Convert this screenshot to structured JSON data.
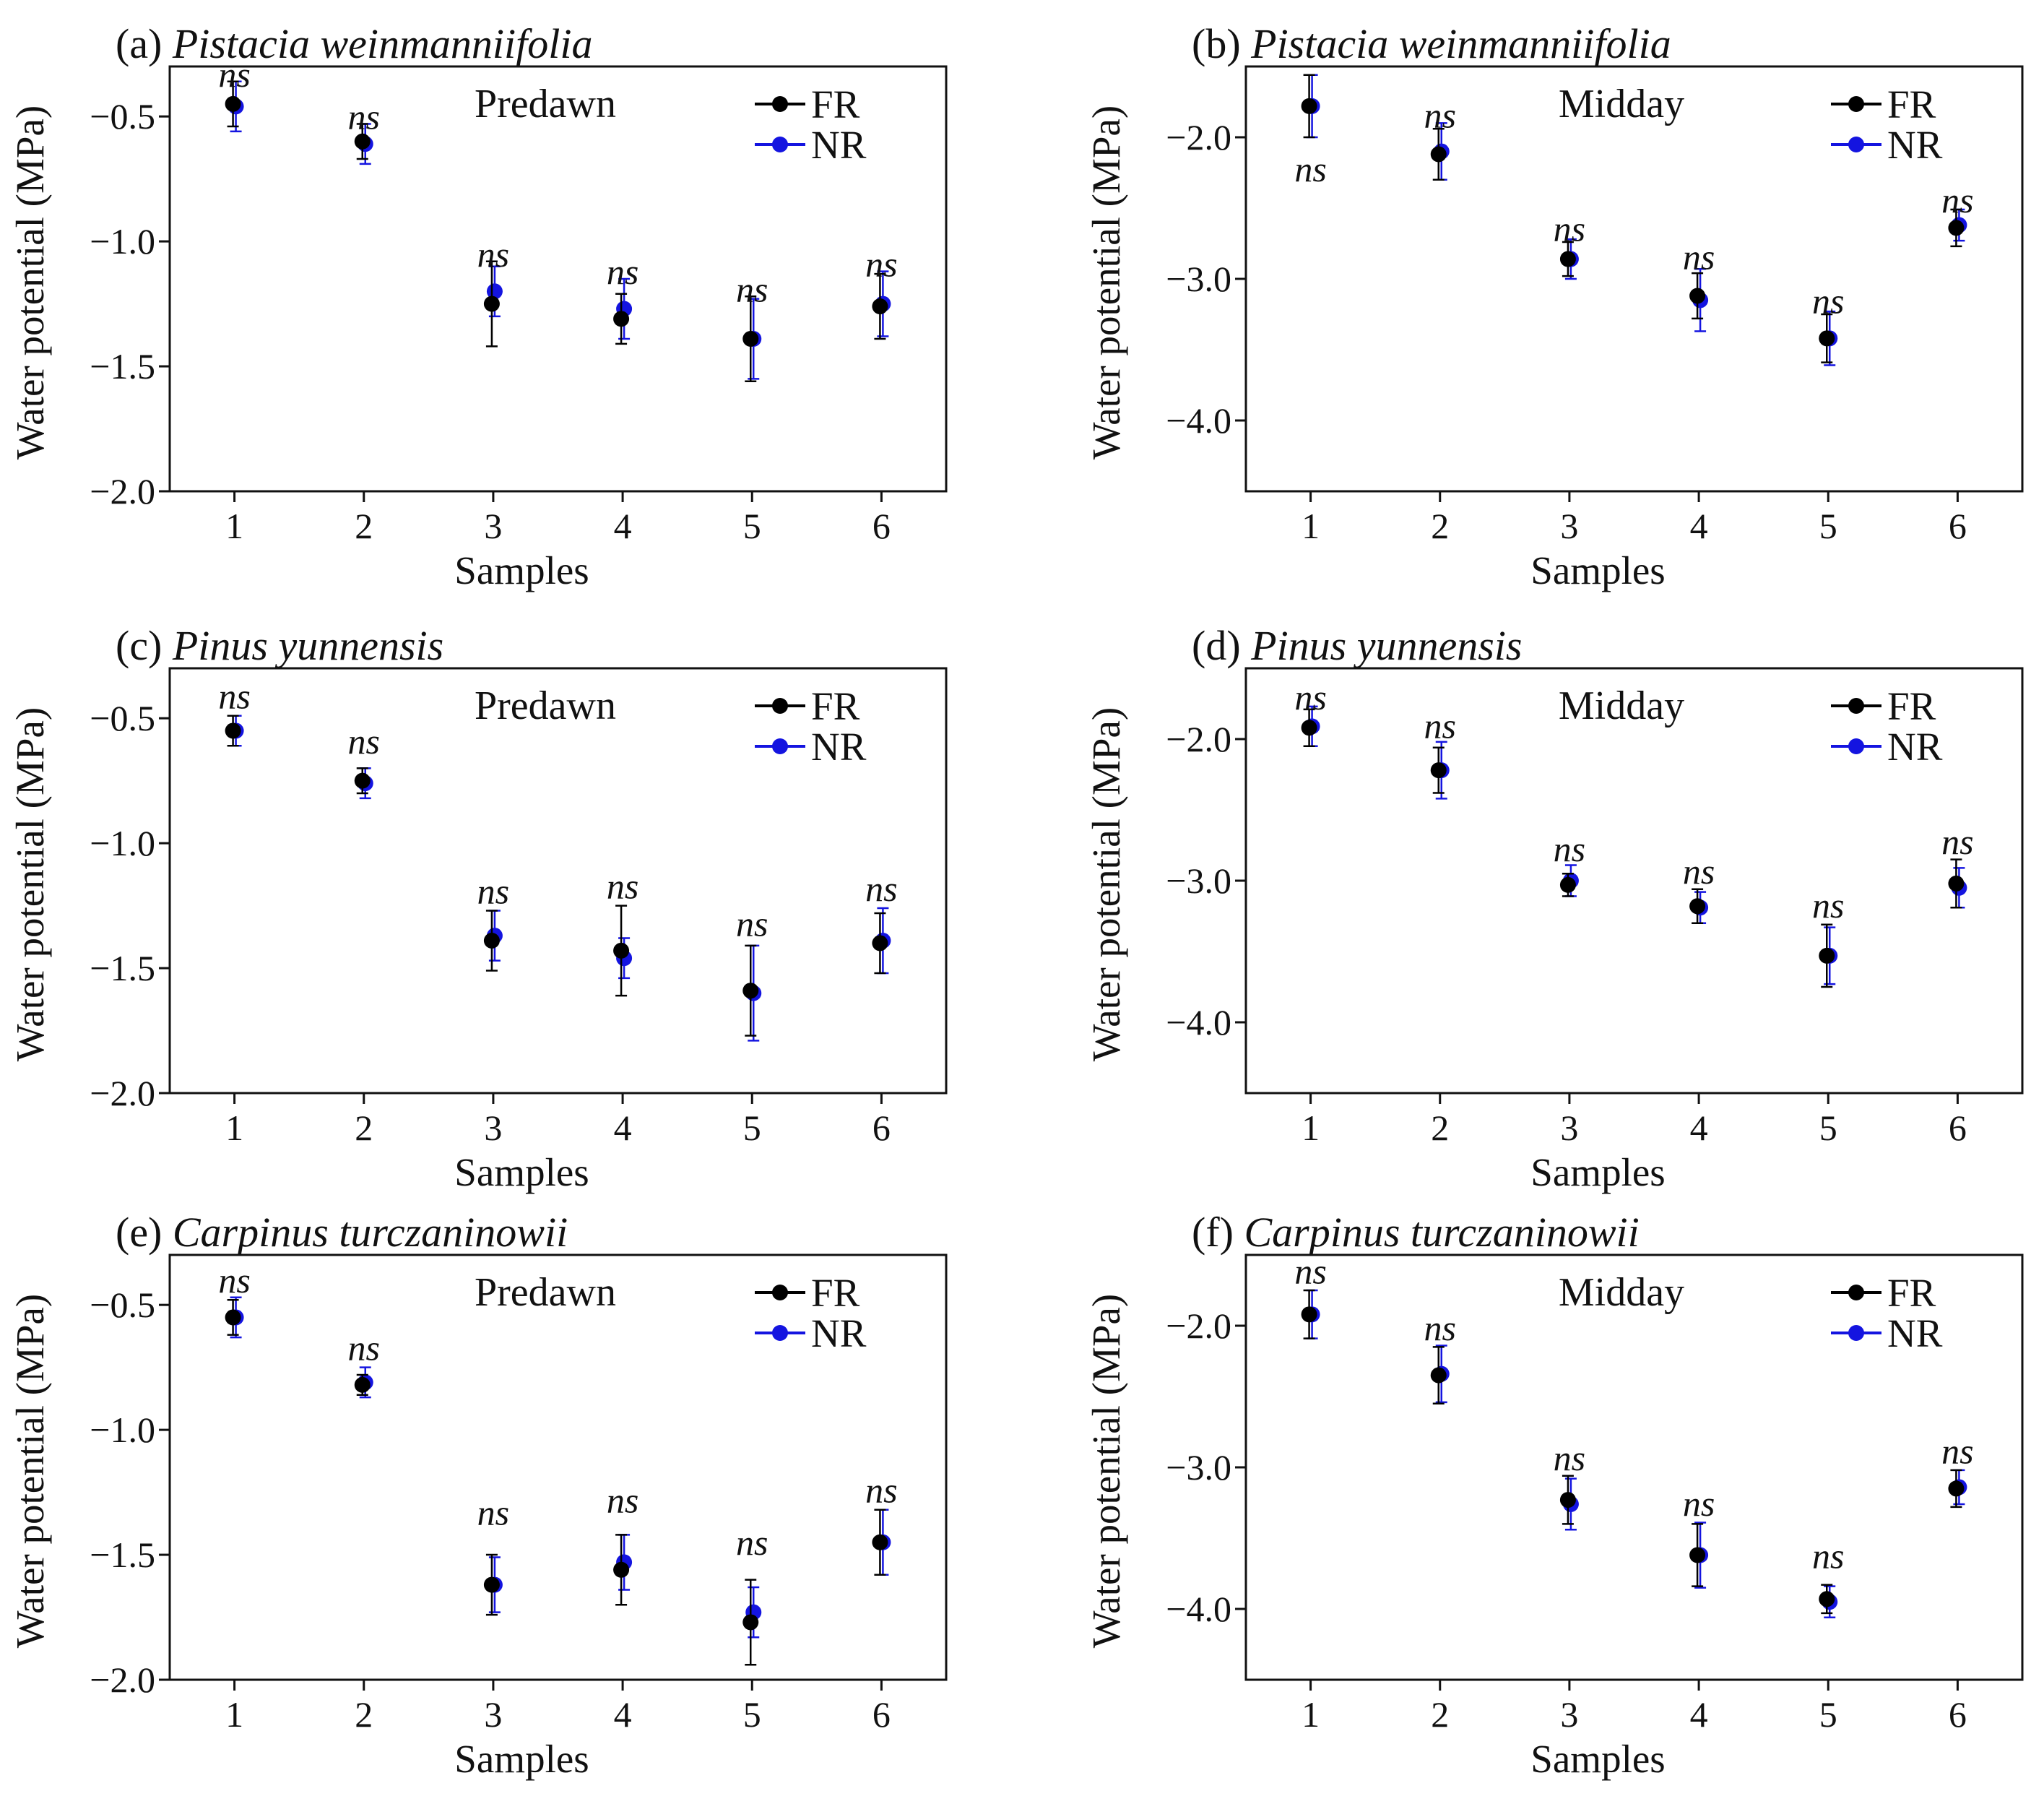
{
  "colors": {
    "FR": "#000000",
    "NR": "#1414e0",
    "axis": "#111111"
  },
  "chart_data": [
    {
      "type": "scatter",
      "label": "(a)",
      "title": "Pistacia weinmanniifolia",
      "mode_label": "Predawn",
      "xlabel": "Samples",
      "ylabel": "Water potential (MPa)",
      "x": [
        1,
        2,
        3,
        4,
        5,
        6
      ],
      "xlim": [
        0.5,
        6.5
      ],
      "ylim": [
        -2.0,
        -0.3
      ],
      "yticks": [
        -0.5,
        -1.0,
        -1.5,
        -2.0
      ],
      "ytick_labels": [
        "−0.5",
        "−1.0",
        "−1.5",
        "−2.0"
      ],
      "grid": false,
      "legend": "top-right",
      "series": [
        {
          "name": "FR",
          "color": "#000000",
          "values": [
            -0.45,
            -0.6,
            -1.25,
            -1.31,
            -1.39,
            -1.26
          ],
          "errors": [
            0.09,
            0.07,
            0.17,
            0.1,
            0.17,
            0.13
          ]
        },
        {
          "name": "NR",
          "color": "#1414e0",
          "values": [
            -0.46,
            -0.61,
            -1.2,
            -1.27,
            -1.39,
            -1.25
          ],
          "errors": [
            0.1,
            0.08,
            0.1,
            0.12,
            0.16,
            0.13
          ]
        }
      ],
      "annotations": [
        {
          "x": 1,
          "y": -0.34,
          "text": "ns"
        },
        {
          "x": 2,
          "y": -0.51,
          "text": "ns"
        },
        {
          "x": 3,
          "y": -1.06,
          "text": "ns"
        },
        {
          "x": 4,
          "y": -1.13,
          "text": "ns"
        },
        {
          "x": 5,
          "y": -1.2,
          "text": "ns"
        },
        {
          "x": 6,
          "y": -1.1,
          "text": "ns"
        }
      ]
    },
    {
      "type": "scatter",
      "label": "(b)",
      "title": "Pistacia weinmanniifolia",
      "mode_label": "Midday",
      "xlabel": "Samples",
      "ylabel": "Water potential (MPa)",
      "x": [
        1,
        2,
        3,
        4,
        5,
        6
      ],
      "xlim": [
        0.5,
        6.5
      ],
      "ylim": [
        -4.5,
        -1.5
      ],
      "yticks": [
        -2.0,
        -3.0,
        -4.0
      ],
      "ytick_labels": [
        "−2.0",
        "−3.0",
        "−4.0"
      ],
      "grid": false,
      "legend": "top-right",
      "series": [
        {
          "name": "FR",
          "color": "#000000",
          "values": [
            -1.78,
            -2.12,
            -2.86,
            -3.12,
            -3.42,
            -2.64
          ],
          "errors": [
            0.22,
            0.18,
            0.12,
            0.16,
            0.17,
            0.13
          ]
        },
        {
          "name": "NR",
          "color": "#1414e0",
          "values": [
            -1.78,
            -2.1,
            -2.86,
            -3.15,
            -3.42,
            -2.62
          ],
          "errors": [
            0.22,
            0.2,
            0.14,
            0.22,
            0.19,
            0.11
          ]
        }
      ],
      "annotations": [
        {
          "x": 1,
          "y": -2.24,
          "text": "ns"
        },
        {
          "x": 2,
          "y": -1.86,
          "text": "ns"
        },
        {
          "x": 3,
          "y": -2.66,
          "text": "ns"
        },
        {
          "x": 4,
          "y": -2.86,
          "text": "ns"
        },
        {
          "x": 5,
          "y": -3.17,
          "text": "ns"
        },
        {
          "x": 6,
          "y": -2.46,
          "text": "ns"
        }
      ]
    },
    {
      "type": "scatter",
      "label": "(c)",
      "title": "Pinus yunnensis",
      "mode_label": "Predawn",
      "xlabel": "Samples",
      "ylabel": "Water potential (MPa)",
      "x": [
        1,
        2,
        3,
        4,
        5,
        6
      ],
      "xlim": [
        0.5,
        6.5
      ],
      "ylim": [
        -2.0,
        -0.3
      ],
      "yticks": [
        -0.5,
        -1.0,
        -1.5,
        -2.0
      ],
      "ytick_labels": [
        "−0.5",
        "−1.0",
        "−1.5",
        "−2.0"
      ],
      "grid": false,
      "legend": "top-right",
      "series": [
        {
          "name": "FR",
          "color": "#000000",
          "values": [
            -0.55,
            -0.75,
            -1.39,
            -1.43,
            -1.59,
            -1.4
          ],
          "errors": [
            0.06,
            0.05,
            0.12,
            0.18,
            0.18,
            0.12
          ]
        },
        {
          "name": "NR",
          "color": "#1414e0",
          "values": [
            -0.55,
            -0.76,
            -1.37,
            -1.46,
            -1.6,
            -1.39
          ],
          "errors": [
            0.06,
            0.06,
            0.1,
            0.08,
            0.19,
            0.13
          ]
        }
      ],
      "annotations": [
        {
          "x": 1,
          "y": -0.42,
          "text": "ns"
        },
        {
          "x": 2,
          "y": -0.6,
          "text": "ns"
        },
        {
          "x": 3,
          "y": -1.2,
          "text": "ns"
        },
        {
          "x": 4,
          "y": -1.18,
          "text": "ns"
        },
        {
          "x": 5,
          "y": -1.33,
          "text": "ns"
        },
        {
          "x": 6,
          "y": -1.19,
          "text": "ns"
        }
      ]
    },
    {
      "type": "scatter",
      "label": "(d)",
      "title": "Pinus yunnensis",
      "mode_label": "Midday",
      "xlabel": "Samples",
      "ylabel": "Water potential (MPa)",
      "x": [
        1,
        2,
        3,
        4,
        5,
        6
      ],
      "xlim": [
        0.5,
        6.5
      ],
      "ylim": [
        -4.5,
        -1.5
      ],
      "yticks": [
        -2.0,
        -3.0,
        -4.0
      ],
      "ytick_labels": [
        "−2.0",
        "−3.0",
        "−4.0"
      ],
      "grid": false,
      "legend": "top-right",
      "series": [
        {
          "name": "FR",
          "color": "#000000",
          "values": [
            -1.92,
            -2.22,
            -3.03,
            -3.18,
            -3.53,
            -3.02
          ],
          "errors": [
            0.13,
            0.16,
            0.08,
            0.12,
            0.22,
            0.17
          ]
        },
        {
          "name": "NR",
          "color": "#1414e0",
          "values": [
            -1.91,
            -2.22,
            -3.0,
            -3.19,
            -3.53,
            -3.05
          ],
          "errors": [
            0.14,
            0.2,
            0.11,
            0.11,
            0.2,
            0.14
          ]
        }
      ],
      "annotations": [
        {
          "x": 1,
          "y": -1.72,
          "text": "ns"
        },
        {
          "x": 2,
          "y": -1.92,
          "text": "ns"
        },
        {
          "x": 3,
          "y": -2.79,
          "text": "ns"
        },
        {
          "x": 4,
          "y": -2.95,
          "text": "ns"
        },
        {
          "x": 5,
          "y": -3.19,
          "text": "ns"
        },
        {
          "x": 6,
          "y": -2.74,
          "text": "ns"
        }
      ]
    },
    {
      "type": "scatter",
      "label": "(e)",
      "title": "Carpinus turczaninowii",
      "mode_label": "Predawn",
      "xlabel": "Samples",
      "ylabel": "Water potential (MPa)",
      "x": [
        1,
        2,
        3,
        4,
        5,
        6
      ],
      "xlim": [
        0.5,
        6.5
      ],
      "ylim": [
        -2.0,
        -0.3
      ],
      "yticks": [
        -0.5,
        -1.0,
        -1.5,
        -2.0
      ],
      "ytick_labels": [
        "−0.5",
        "−1.0",
        "−1.5",
        "−2.0"
      ],
      "grid": false,
      "legend": "top-right",
      "series": [
        {
          "name": "FR",
          "color": "#000000",
          "values": [
            -0.55,
            -0.82,
            -1.62,
            -1.56,
            -1.77,
            -1.45
          ],
          "errors": [
            0.07,
            0.04,
            0.12,
            0.14,
            0.17,
            0.13
          ]
        },
        {
          "name": "NR",
          "color": "#1414e0",
          "values": [
            -0.55,
            -0.81,
            -1.62,
            -1.53,
            -1.73,
            -1.45
          ],
          "errors": [
            0.08,
            0.06,
            0.11,
            0.11,
            0.1,
            0.13
          ]
        }
      ],
      "annotations": [
        {
          "x": 1,
          "y": -0.41,
          "text": "ns"
        },
        {
          "x": 2,
          "y": -0.68,
          "text": "ns"
        },
        {
          "x": 3,
          "y": -1.34,
          "text": "ns"
        },
        {
          "x": 4,
          "y": -1.29,
          "text": "ns"
        },
        {
          "x": 5,
          "y": -1.46,
          "text": "ns"
        },
        {
          "x": 6,
          "y": -1.25,
          "text": "ns"
        }
      ]
    },
    {
      "type": "scatter",
      "label": "(f)",
      "title": "Carpinus turczaninowii",
      "mode_label": "Midday",
      "xlabel": "Samples",
      "ylabel": "Water potential (MPa)",
      "x": [
        1,
        2,
        3,
        4,
        5,
        6
      ],
      "xlim": [
        0.5,
        6.5
      ],
      "ylim": [
        -4.5,
        -1.5
      ],
      "yticks": [
        -2.0,
        -3.0,
        -4.0
      ],
      "ytick_labels": [
        "−2.0",
        "−3.0",
        "−4.0"
      ],
      "grid": false,
      "legend": "top-right",
      "series": [
        {
          "name": "FR",
          "color": "#000000",
          "values": [
            -1.92,
            -2.35,
            -3.23,
            -3.62,
            -3.93,
            -3.15
          ],
          "errors": [
            0.17,
            0.2,
            0.17,
            0.22,
            0.1,
            0.13
          ]
        },
        {
          "name": "NR",
          "color": "#1414e0",
          "values": [
            -1.92,
            -2.34,
            -3.26,
            -3.62,
            -3.95,
            -3.14
          ],
          "errors": [
            0.17,
            0.2,
            0.18,
            0.23,
            0.11,
            0.12
          ]
        }
      ],
      "annotations": [
        {
          "x": 1,
          "y": -1.63,
          "text": "ns"
        },
        {
          "x": 2,
          "y": -2.03,
          "text": "ns"
        },
        {
          "x": 3,
          "y": -2.95,
          "text": "ns"
        },
        {
          "x": 4,
          "y": -3.27,
          "text": "ns"
        },
        {
          "x": 5,
          "y": -3.64,
          "text": "ns"
        },
        {
          "x": 6,
          "y": -2.9,
          "text": "ns"
        }
      ]
    }
  ]
}
